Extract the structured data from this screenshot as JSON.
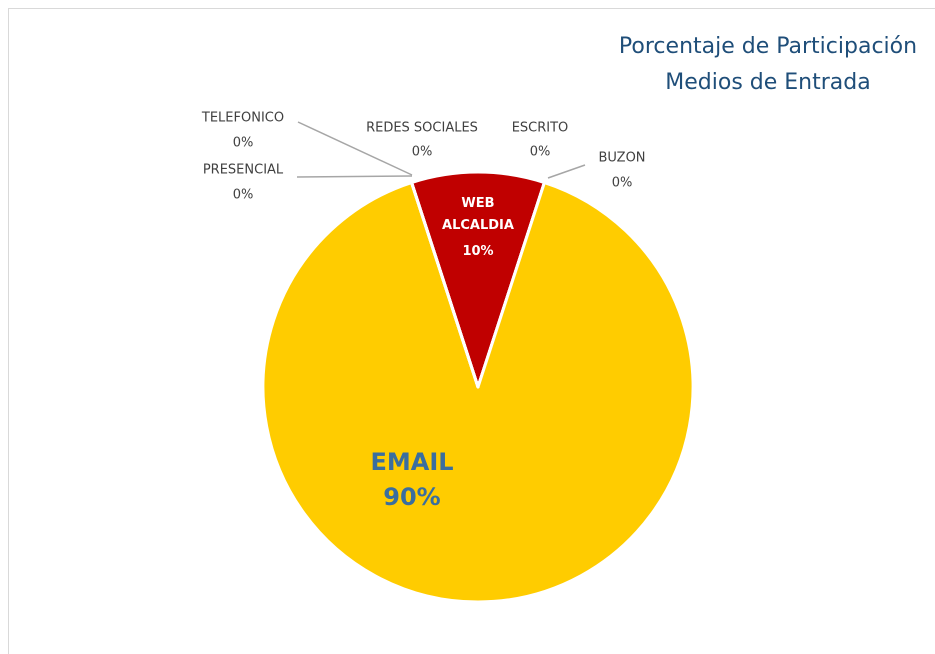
{
  "chart_data": {
    "type": "pie",
    "title": [
      "Porcentaje de Participación",
      "Medios de Entrada"
    ],
    "categories": [
      "WEB ALCALDIA",
      "ESCRITO",
      "BUZON",
      "EMAIL",
      "PRESENCIAL",
      "TELEFONICO",
      "REDES SOCIALES"
    ],
    "values": [
      10,
      0,
      0,
      90,
      0,
      0,
      0
    ],
    "value_labels": [
      "10%",
      "0%",
      "0%",
      "90%",
      "0%",
      "0%",
      "0%"
    ],
    "colors": [
      "#c00000",
      null,
      null,
      "#ffcc00",
      null,
      null,
      null
    ]
  }
}
